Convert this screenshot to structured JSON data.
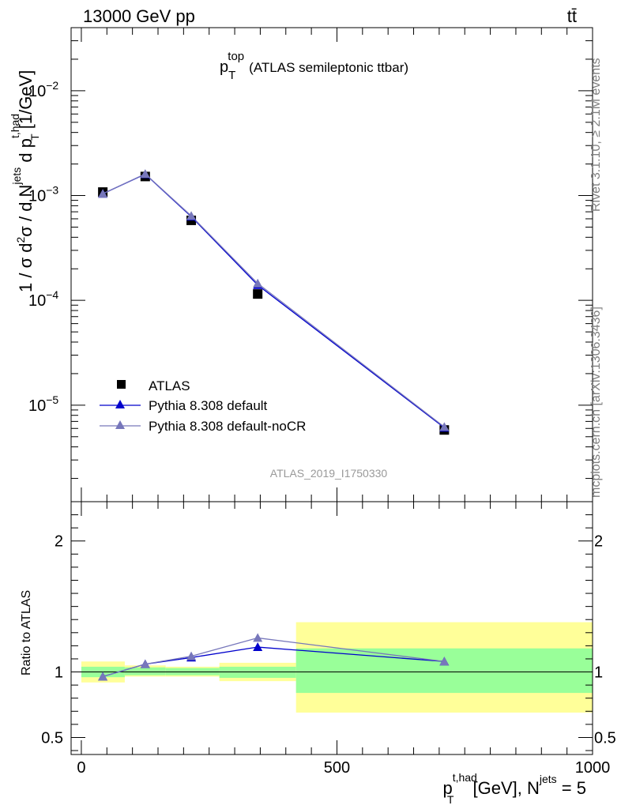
{
  "header": {
    "left": "13000 GeV pp",
    "right": "tt̄"
  },
  "side_text": {
    "rivet": "Rivet 3.1.10, ≥ 2.1M events",
    "mcplots": "mcplots.cern.ch [arXiv:1306.3436]"
  },
  "chart_data": [
    {
      "type": "line",
      "panel": "main",
      "title": "p_T^top (ATLAS semileptonic ttbar)",
      "title_parts": {
        "p": "p",
        "sub": "T",
        "sup": "top",
        "rest": "(ATLAS semileptonic ttbar)"
      },
      "watermark": "ATLAS_2019_I1750330",
      "ylabel_parts": {
        "a": "1 / σ d",
        "b": "2",
        "c": "σ /  d N",
        "d": "jets",
        "e": " d p",
        "f": "t,had",
        "g": "T",
        "h": " [1/GeV]"
      },
      "yscale": "log",
      "ylim": [
        1.2e-06,
        0.04
      ],
      "xlim": [
        -20,
        1000
      ],
      "y_ticks": [
        {
          "value": 1e-05,
          "base": "10",
          "exp": "−5"
        },
        {
          "value": 0.0001,
          "base": "10",
          "exp": "−4"
        },
        {
          "value": 0.001,
          "base": "10",
          "exp": "−3"
        },
        {
          "value": 0.01,
          "base": "10",
          "exp": "−2"
        }
      ],
      "x": [
        42,
        125,
        215,
        345,
        710
      ],
      "series": [
        {
          "name": "ATLAS",
          "marker": "square",
          "color": "#000000",
          "values": [
            0.00108,
            0.00152,
            0.00058,
            0.000115,
            5.8e-06
          ]
        },
        {
          "name": "Pythia 8.308 default",
          "marker": "triangle",
          "color": "#0000cc",
          "values": [
            0.00104,
            0.0016,
            0.00063,
            0.00014,
            6.1e-06
          ]
        },
        {
          "name": "Pythia 8.308 default-noCR",
          "marker": "triangle",
          "color": "#7777bb",
          "values": [
            0.00104,
            0.00161,
            0.00064,
            0.000145,
            6.2e-06
          ]
        }
      ],
      "legend_position": "lower-left"
    },
    {
      "type": "line",
      "panel": "ratio",
      "ylabel": "Ratio to ATLAS",
      "ylim": [
        0.37,
        2.3
      ],
      "y_ticks": [
        {
          "value": 0.5,
          "label": "0.5"
        },
        {
          "value": 1,
          "label": "1"
        },
        {
          "value": 2,
          "label": "2"
        }
      ],
      "xlim": [
        -20,
        1000
      ],
      "x_ticks": [
        {
          "value": 0,
          "label": "0"
        },
        {
          "value": 500,
          "label": "500"
        },
        {
          "value": 1000,
          "label": "1000"
        }
      ],
      "xlabel_parts": {
        "a": "p",
        "b": "t,had",
        "c": "T",
        "d": " [GeV], N",
        "e": "jets",
        "f": " = 5"
      },
      "bins": [
        {
          "x0": 0,
          "x1": 85,
          "band_outer": [
            0.92,
            1.08
          ],
          "band_inner": [
            0.96,
            1.04
          ]
        },
        {
          "x0": 85,
          "x1": 165,
          "band_outer": [
            0.965,
            1.05
          ],
          "band_inner": [
            0.975,
            1.035
          ]
        },
        {
          "x0": 165,
          "x1": 270,
          "band_outer": [
            0.965,
            1.04
          ],
          "band_inner": [
            0.975,
            1.03
          ]
        },
        {
          "x0": 270,
          "x1": 420,
          "band_outer": [
            0.93,
            1.07
          ],
          "band_inner": [
            0.955,
            1.04
          ]
        },
        {
          "x0": 420,
          "x1": 1000,
          "band_outer": [
            0.69,
            1.38
          ],
          "band_inner": [
            0.84,
            1.18
          ]
        }
      ],
      "x": [
        42,
        125,
        215,
        345,
        710
      ],
      "series": [
        {
          "name": "Pythia 8.308 default",
          "color": "#0000cc",
          "values": [
            0.965,
            1.06,
            1.11,
            1.19,
            1.08
          ]
        },
        {
          "name": "Pythia 8.308 default-noCR",
          "color": "#7777bb",
          "values": [
            0.965,
            1.06,
            1.12,
            1.26,
            1.08
          ]
        }
      ]
    }
  ]
}
